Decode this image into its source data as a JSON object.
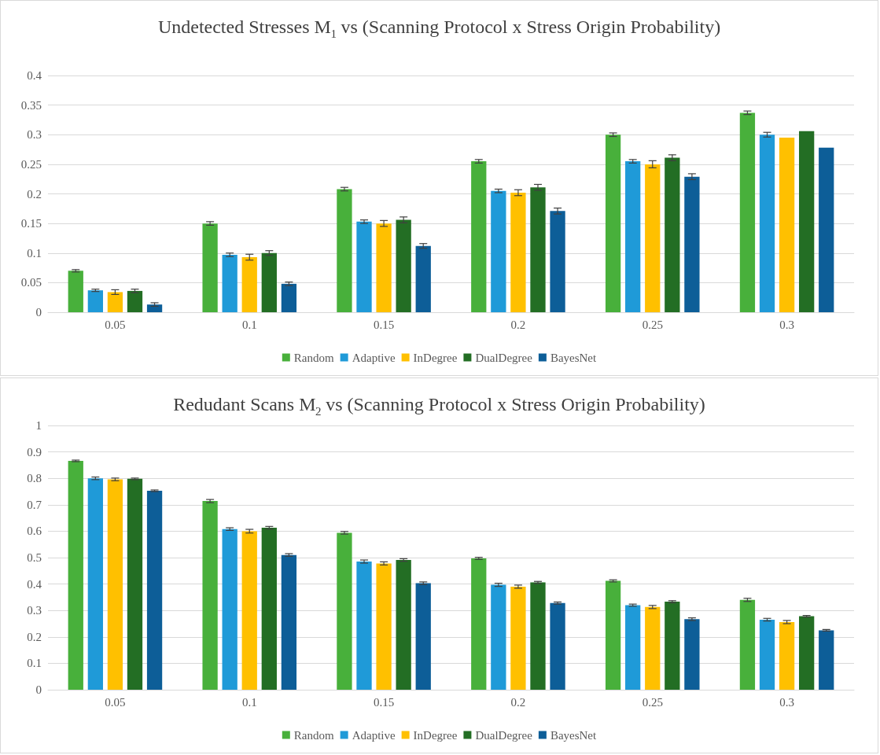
{
  "chart_data": [
    {
      "type": "bar",
      "title": "Undetected Stresses M$_{1}$ vs (Scanning Protocol x Stress Origin Probability)",
      "categories": [
        "0.05",
        "0.1",
        "0.15",
        "0.2",
        "0.25",
        "0.3"
      ],
      "series": [
        {
          "name": "Random",
          "color": "#48b03b",
          "values": [
            0.07,
            0.15,
            0.208,
            0.255,
            0.3,
            0.337
          ],
          "errors": [
            0.002,
            0.003,
            0.003,
            0.003,
            0.003,
            0.003
          ]
        },
        {
          "name": "Adaptive",
          "color": "#1f9ad8",
          "values": [
            0.037,
            0.097,
            0.153,
            0.205,
            0.255,
            0.3
          ],
          "errors": [
            0.002,
            0.003,
            0.003,
            0.003,
            0.003,
            0.004
          ]
        },
        {
          "name": "InDegree",
          "color": "#ffc000",
          "values": [
            0.034,
            0.093,
            0.15,
            0.202,
            0.25,
            0.295
          ],
          "errors": [
            0.004,
            0.005,
            0.005,
            0.005,
            0.006,
            null
          ]
        },
        {
          "name": "DualDegree",
          "color": "#236e24",
          "values": [
            0.036,
            0.1,
            0.156,
            0.211,
            0.261,
            0.306
          ],
          "errors": [
            0.003,
            0.004,
            0.005,
            0.005,
            0.005,
            null
          ]
        },
        {
          "name": "BayesNet",
          "color": "#0d5e98",
          "values": [
            0.013,
            0.048,
            0.112,
            0.171,
            0.229,
            0.278
          ],
          "errors": [
            0.003,
            0.003,
            0.004,
            0.005,
            0.005,
            null
          ]
        }
      ],
      "ylim": [
        0,
        0.4
      ],
      "yticks": [
        0,
        0.05,
        0.1,
        0.15,
        0.2,
        0.25,
        0.3,
        0.35,
        0.4
      ],
      "grid": "y",
      "legend": "bottom"
    },
    {
      "type": "bar",
      "title": "Redudant Scans M$_{2}$ vs (Scanning Protocol x Stress Origin Probability)",
      "categories": [
        "0.05",
        "0.1",
        "0.15",
        "0.2",
        "0.25",
        "0.3"
      ],
      "series": [
        {
          "name": "Random",
          "color": "#48b03b",
          "values": [
            0.866,
            0.714,
            0.594,
            0.497,
            0.412,
            0.34
          ],
          "errors": [
            0.003,
            0.006,
            0.005,
            0.004,
            0.004,
            0.006
          ]
        },
        {
          "name": "Adaptive",
          "color": "#1f9ad8",
          "values": [
            0.8,
            0.608,
            0.485,
            0.397,
            0.32,
            0.265
          ],
          "errors": [
            0.005,
            0.005,
            0.006,
            0.006,
            0.004,
            0.005
          ]
        },
        {
          "name": "InDegree",
          "color": "#ffc000",
          "values": [
            0.796,
            0.6,
            0.478,
            0.39,
            0.313,
            0.256
          ],
          "errors": [
            0.005,
            0.007,
            0.006,
            0.006,
            0.006,
            0.006
          ]
        },
        {
          "name": "DualDegree",
          "color": "#236e24",
          "values": [
            0.798,
            0.613,
            0.491,
            0.406,
            0.333,
            0.278
          ],
          "errors": [
            0.003,
            0.005,
            0.005,
            0.004,
            0.004,
            0.003
          ]
        },
        {
          "name": "BayesNet",
          "color": "#0d5e98",
          "values": [
            0.753,
            0.51,
            0.403,
            0.328,
            0.267,
            0.225
          ],
          "errors": [
            0.003,
            0.005,
            0.005,
            0.004,
            0.005,
            0.003
          ]
        }
      ],
      "ylim": [
        0,
        1
      ],
      "yticks": [
        0,
        0.1,
        0.2,
        0.3,
        0.4,
        0.5,
        0.6,
        0.7,
        0.8,
        0.9,
        1
      ],
      "grid": "y",
      "legend": "bottom"
    }
  ]
}
